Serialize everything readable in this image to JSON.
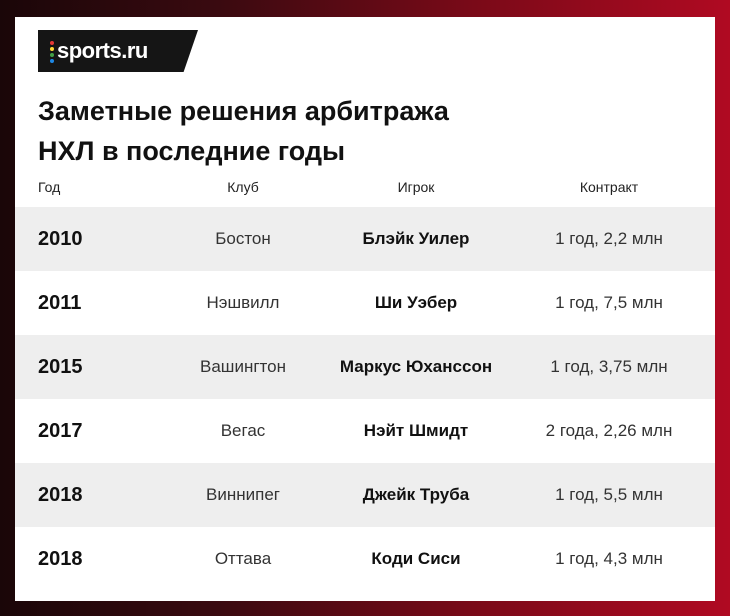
{
  "brand": {
    "name": "sports.ru",
    "dot_colors": [
      "#e53935",
      "#fdd835",
      "#43a047",
      "#1e88e5"
    ]
  },
  "title": {
    "line1": "Заметные решения арбитража",
    "line2": "НХЛ в последние годы"
  },
  "table": {
    "headers": {
      "year": "Год",
      "club": "Клуб",
      "player": "Игрок",
      "contract": "Контракт"
    },
    "rows": [
      {
        "year": "2010",
        "club": "Бостон",
        "player": "Блэйк Уилер",
        "contract": "1 год, 2,2 млн"
      },
      {
        "year": "2011",
        "club": "Нэшвилл",
        "player": "Ши Уэбер",
        "contract": "1 год, 7,5 млн"
      },
      {
        "year": "2015",
        "club": "Вашингтон",
        "player": "Маркус Юханссон",
        "contract": "1 год, 3,75 млн"
      },
      {
        "year": "2017",
        "club": "Вегас",
        "player": "Нэйт Шмидт",
        "contract": "2 года, 2,26 млн"
      },
      {
        "year": "2018",
        "club": "Виннипег",
        "player": "Джейк Труба",
        "contract": "1 год, 5,5 млн"
      },
      {
        "year": "2018",
        "club": "Оттава",
        "player": "Коди Сиси",
        "contract": "1 год, 4,3 млн"
      }
    ]
  }
}
